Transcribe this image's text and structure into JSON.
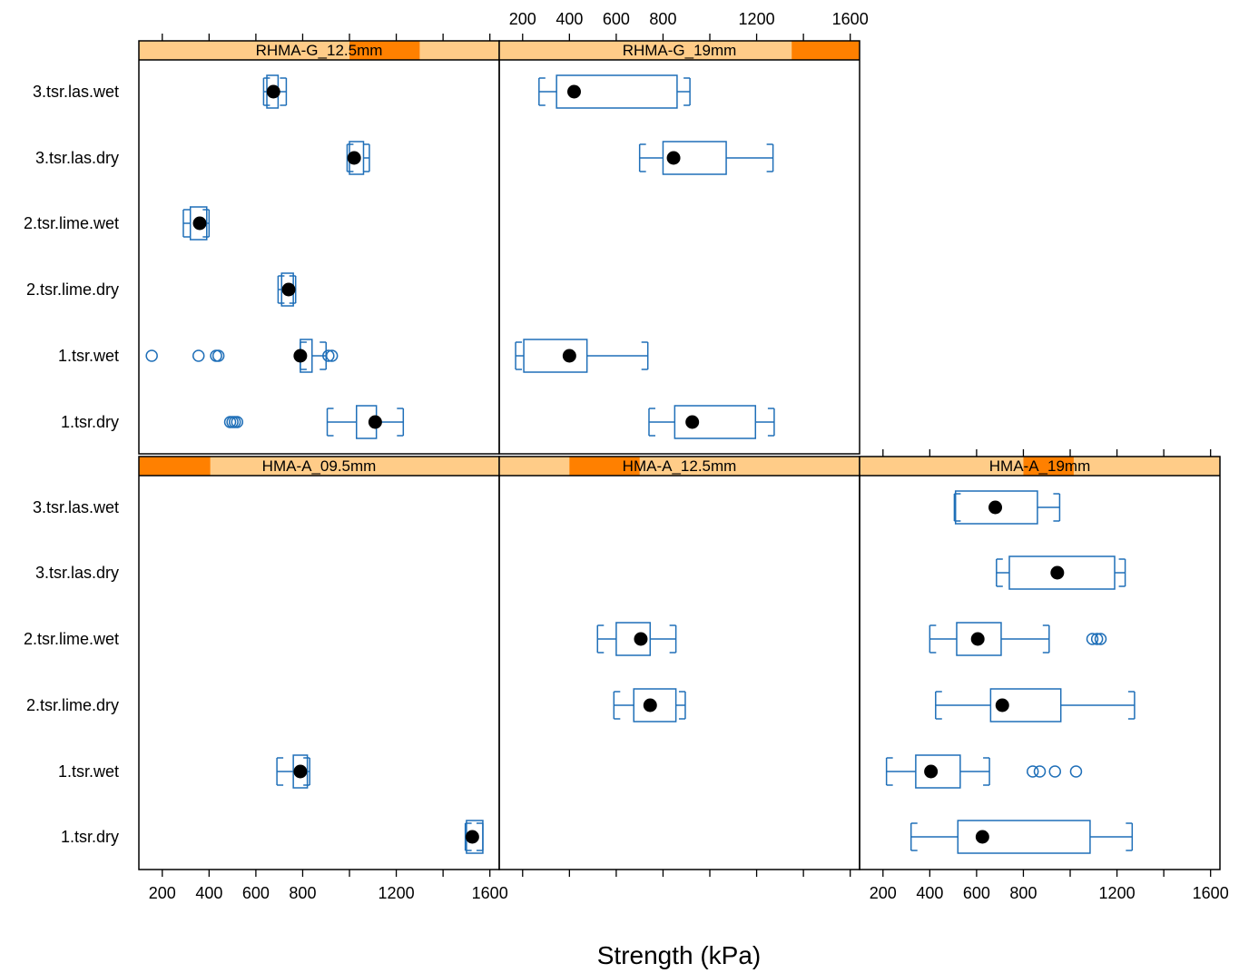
{
  "chart_data": {
    "type": "boxplot",
    "xlabel": "Strength (kPa)",
    "xlim": [
      100,
      1640
    ],
    "ticks": [
      200,
      400,
      600,
      800,
      1000,
      1200,
      1400,
      1600
    ],
    "tick_labels": [
      "200",
      "400",
      "600",
      "800",
      "1200",
      "1600"
    ],
    "tick_label_values": [
      200,
      400,
      600,
      800,
      1200,
      1600
    ],
    "categories": [
      "3.tsr.las.wet",
      "3.tsr.las.dry",
      "2.tsr.lime.wet",
      "2.tsr.lime.dry",
      "1.tsr.wet",
      "1.tsr.dry"
    ],
    "colors": {
      "box": "#1f6fb8",
      "strip_bg": "#ffcc88",
      "strip_fg": "#ff8000",
      "median": "#000000"
    },
    "panels": [
      {
        "title": "RHMA-G_12.5mm",
        "strip_range": [
          1000,
          1300
        ],
        "boxes": [
          {
            "category": "3.tsr.las.wet",
            "min": 633,
            "q1": 647,
            "median": 675,
            "q3": 695,
            "max": 730,
            "outliers": []
          },
          {
            "category": "3.tsr.las.dry",
            "min": 990,
            "q1": 1000,
            "median": 1020,
            "q3": 1060,
            "max": 1085,
            "outliers": []
          },
          {
            "category": "2.tsr.lime.wet",
            "min": 290,
            "q1": 320,
            "median": 360,
            "q3": 390,
            "max": 400,
            "outliers": []
          },
          {
            "category": "2.tsr.lime.dry",
            "min": 695,
            "q1": 710,
            "median": 740,
            "q3": 760,
            "max": 770,
            "outliers": []
          },
          {
            "category": "1.tsr.wet",
            "min": 790,
            "q1": 790,
            "median": 790,
            "q3": 840,
            "max": 900,
            "outliers": [
              155,
              355,
              430,
              440,
              910,
              925
            ]
          },
          {
            "category": "1.tsr.dry",
            "min": 905,
            "q1": 1030,
            "median": 1110,
            "q3": 1115,
            "max": 1230,
            "outliers": [
              490,
              500,
              510,
              520
            ]
          }
        ]
      },
      {
        "title": "RHMA-G_19mm",
        "strip_range": [
          1350,
          1650
        ],
        "boxes": [
          {
            "category": "3.tsr.las.wet",
            "min": 270,
            "q1": 345,
            "median": 420,
            "q3": 860,
            "max": 915,
            "outliers": []
          },
          {
            "category": "3.tsr.las.dry",
            "min": 700,
            "q1": 800,
            "median": 845,
            "q3": 1070,
            "max": 1270,
            "outliers": []
          },
          {
            "category": "2.tsr.lime.wet",
            "min": null,
            "q1": null,
            "median": null,
            "q3": null,
            "max": null,
            "outliers": []
          },
          {
            "category": "2.tsr.lime.dry",
            "min": null,
            "q1": null,
            "median": null,
            "q3": null,
            "max": null,
            "outliers": []
          },
          {
            "category": "1.tsr.wet",
            "min": 170,
            "q1": 205,
            "median": 400,
            "q3": 475,
            "max": 735,
            "outliers": []
          },
          {
            "category": "1.tsr.dry",
            "min": 740,
            "q1": 850,
            "median": 925,
            "q3": 1195,
            "max": 1275,
            "outliers": []
          }
        ]
      },
      {
        "title": "HMA-A_09.5mm",
        "strip_range": [
          100,
          405
        ],
        "boxes": [
          {
            "category": "3.tsr.las.wet",
            "min": null,
            "q1": null,
            "median": null,
            "q3": null,
            "max": null,
            "outliers": []
          },
          {
            "category": "3.tsr.las.dry",
            "min": null,
            "q1": null,
            "median": null,
            "q3": null,
            "max": null,
            "outliers": []
          },
          {
            "category": "2.tsr.lime.wet",
            "min": null,
            "q1": null,
            "median": null,
            "q3": null,
            "max": null,
            "outliers": []
          },
          {
            "category": "2.tsr.lime.dry",
            "min": null,
            "q1": null,
            "median": null,
            "q3": null,
            "max": null,
            "outliers": []
          },
          {
            "category": "1.tsr.wet",
            "min": 690,
            "q1": 760,
            "median": 790,
            "q3": 820,
            "max": 830,
            "outliers": []
          },
          {
            "category": "1.tsr.dry",
            "min": 1495,
            "q1": 1500,
            "median": 1525,
            "q3": 1570,
            "max": 1570,
            "outliers": []
          }
        ]
      },
      {
        "title": "HMA-A_12.5mm",
        "strip_range": [
          400,
          700
        ],
        "boxes": [
          {
            "category": "3.tsr.las.wet",
            "min": null,
            "q1": null,
            "median": null,
            "q3": null,
            "max": null,
            "outliers": []
          },
          {
            "category": "3.tsr.las.dry",
            "min": null,
            "q1": null,
            "median": null,
            "q3": null,
            "max": null,
            "outliers": []
          },
          {
            "category": "2.tsr.lime.wet",
            "min": 520,
            "q1": 600,
            "median": 705,
            "q3": 745,
            "max": 855,
            "outliers": []
          },
          {
            "category": "2.tsr.lime.dry",
            "min": 590,
            "q1": 675,
            "median": 745,
            "q3": 855,
            "max": 895,
            "outliers": []
          },
          {
            "category": "1.tsr.wet",
            "min": null,
            "q1": null,
            "median": null,
            "q3": null,
            "max": null,
            "outliers": []
          },
          {
            "category": "1.tsr.dry",
            "min": null,
            "q1": null,
            "median": null,
            "q3": null,
            "max": null,
            "outliers": []
          }
        ]
      },
      {
        "title": "HMA-A_19mm",
        "strip_range": [
          800,
          1015
        ],
        "boxes": [
          {
            "category": "3.tsr.las.wet",
            "min": 505,
            "q1": 510,
            "median": 680,
            "q3": 860,
            "max": 955,
            "outliers": []
          },
          {
            "category": "3.tsr.las.dry",
            "min": 685,
            "q1": 740,
            "median": 945,
            "q3": 1190,
            "max": 1235,
            "outliers": []
          },
          {
            "category": "2.tsr.lime.wet",
            "min": 400,
            "q1": 515,
            "median": 605,
            "q3": 705,
            "max": 910,
            "outliers": [
              1095,
              1115,
              1130
            ]
          },
          {
            "category": "2.tsr.lime.dry",
            "min": 425,
            "q1": 660,
            "median": 710,
            "q3": 960,
            "max": 1275,
            "outliers": []
          },
          {
            "category": "1.tsr.wet",
            "min": 215,
            "q1": 340,
            "median": 405,
            "q3": 530,
            "max": 655,
            "outliers": [
              840,
              870,
              935,
              1025
            ]
          },
          {
            "category": "1.tsr.dry",
            "min": 320,
            "q1": 520,
            "median": 625,
            "q3": 1085,
            "max": 1265,
            "outliers": []
          }
        ]
      }
    ]
  }
}
